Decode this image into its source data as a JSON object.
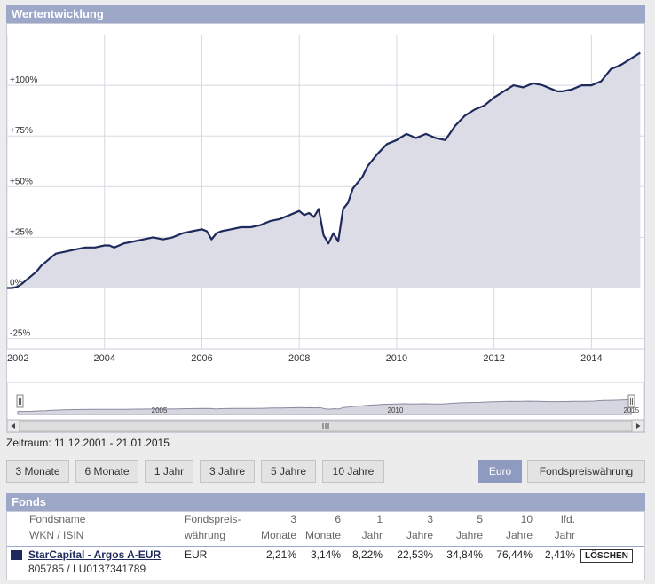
{
  "header": {
    "title": "Wertentwicklung"
  },
  "chart_data": {
    "type": "area",
    "title": "",
    "xlabel": "",
    "ylabel": "",
    "x_ticks": [
      "2002",
      "2004",
      "2006",
      "2008",
      "2010",
      "2012",
      "2014"
    ],
    "y_ticks": [
      "+100%",
      "+75%",
      "+50%",
      "+25%",
      "0%",
      "-25%"
    ],
    "xlim": [
      2002.0,
      2015.05
    ],
    "ylim": [
      -30,
      125
    ],
    "grid": true,
    "legend": "none",
    "series": [
      {
        "x": [
          2002.0,
          2002.1,
          2002.2,
          2002.3,
          2002.4,
          2002.5,
          2002.6,
          2002.7,
          2002.8,
          2002.9,
          2003.0,
          2003.2,
          2003.4,
          2003.6,
          2003.8,
          2004.0,
          2004.1,
          2004.2,
          2004.3,
          2004.4,
          2004.6,
          2004.8,
          2005.0,
          2005.2,
          2005.4,
          2005.6,
          2005.8,
          2006.0,
          2006.1,
          2006.2,
          2006.3,
          2006.4,
          2006.6,
          2006.8,
          2007.0,
          2007.2,
          2007.4,
          2007.6,
          2007.8,
          2008.0,
          2008.1,
          2008.2,
          2008.3,
          2008.4,
          2008.5,
          2008.6,
          2008.7,
          2008.8,
          2008.9,
          2009.0,
          2009.1,
          2009.2,
          2009.3,
          2009.4,
          2009.6,
          2009.8,
          2010.0,
          2010.2,
          2010.4,
          2010.6,
          2010.8,
          2011.0,
          2011.2,
          2011.4,
          2011.6,
          2011.8,
          2012.0,
          2012.2,
          2012.4,
          2012.6,
          2012.8,
          2013.0,
          2013.2,
          2013.3,
          2013.4,
          2013.6,
          2013.8,
          2014.0,
          2014.2,
          2014.4,
          2014.6,
          2014.8,
          2015.0
        ],
        "y": [
          0,
          0,
          0.5,
          2,
          4,
          6,
          8,
          11,
          13,
          15,
          17,
          18,
          19,
          20,
          20,
          21,
          21,
          20,
          21,
          22,
          23,
          24,
          25,
          24,
          25,
          27,
          28,
          29,
          28,
          24,
          27,
          28,
          29,
          30,
          30,
          31,
          33,
          34,
          36,
          38,
          36,
          37,
          35,
          39,
          26,
          22,
          27,
          23,
          39,
          42,
          49,
          52,
          55,
          60,
          66,
          71,
          73,
          76,
          74,
          76,
          74,
          73,
          80,
          85,
          88,
          90,
          94,
          97,
          100,
          99,
          101,
          100,
          98,
          97,
          97,
          98,
          100,
          100,
          102,
          108,
          110,
          113,
          116
        ]
      }
    ],
    "navigator_ticks": [
      "2005",
      "2010",
      "2015"
    ]
  },
  "zeitraum": "Zeitraum: 11.12.2001 - 21.01.2015",
  "range_buttons": [
    "3 Monate",
    "6 Monate",
    "1 Jahr",
    "3 Jahre",
    "5 Jahre",
    "10 Jahre"
  ],
  "currency_buttons": {
    "euro": "Euro",
    "fund": "Fondspreiswährung"
  },
  "colors": {
    "header": "#9da7c7",
    "line": "#1f2a5c",
    "area": "#dcdce6",
    "active": "#8e9ac0"
  },
  "fonds": {
    "title": "Fonds",
    "headers": {
      "name_1": "Fondsname",
      "name_2": "WKN / ISIN",
      "cur_1": "Fondspreis-",
      "cur_2": "währung",
      "m3_1": "3",
      "m3_2": "Monate",
      "m6_1": "6",
      "m6_2": "Monate",
      "y1_1": "1",
      "y1_2": "Jahr",
      "y3_1": "3",
      "y3_2": "Jahre",
      "y5_1": "5",
      "y5_2": "Jahre",
      "y10_1": "10",
      "y10_2": "Jahre",
      "lfd_1": "lfd.",
      "lfd_2": "Jahr"
    },
    "row": {
      "name": "StarCapital - Argos A-EUR",
      "wkn": "805785 / LU0137341789",
      "currency": "EUR",
      "m3": "2,21%",
      "m6": "3,14%",
      "y1": "8,22%",
      "y3": "22,53%",
      "y5": "34,84%",
      "y10": "76,44%",
      "lfd": "2,41%",
      "delete": "LÖSCHEN"
    }
  }
}
